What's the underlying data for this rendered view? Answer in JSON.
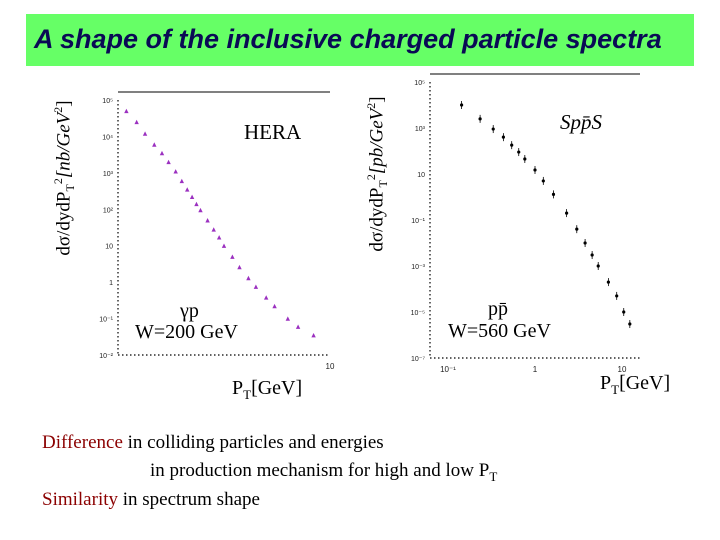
{
  "title": "A shape of the inclusive charged particle spectra",
  "colors": {
    "title_bg": "#66ff66",
    "title_fg": "#0a0a55",
    "accent": "#8b0000",
    "hera_points": "#9b30c0"
  },
  "chart_data": [
    {
      "type": "scatter",
      "name": "HERA",
      "label": "HERA",
      "xscale": "log",
      "yscale": "log",
      "xlim": [
        0.1,
        10
      ],
      "ylim": [
        0.01,
        100000
      ],
      "ylabel": {
        "pre": "dσ/dydP",
        "sub": "T",
        "sup": "2",
        "unit": "[nb/GeV",
        "unit_sup": "2",
        "close": "]"
      },
      "xlabel": {
        "pre": "P",
        "sub": "T",
        "unit": "[GeV]"
      },
      "reaction": "γp",
      "energy": "W=200 GeV",
      "x_ticks": [
        "10"
      ],
      "y_ticks": [
        "10⁻²",
        "10⁻¹",
        "1",
        "10",
        "10²",
        "10³",
        "10⁴",
        "10⁵"
      ],
      "points": [
        {
          "x": 0.12,
          "y": 50000
        },
        {
          "x": 0.15,
          "y": 25000
        },
        {
          "x": 0.18,
          "y": 12000
        },
        {
          "x": 0.22,
          "y": 6000
        },
        {
          "x": 0.26,
          "y": 3500
        },
        {
          "x": 0.3,
          "y": 2000
        },
        {
          "x": 0.35,
          "y": 1100
        },
        {
          "x": 0.4,
          "y": 600
        },
        {
          "x": 0.45,
          "y": 350
        },
        {
          "x": 0.5,
          "y": 220
        },
        {
          "x": 0.55,
          "y": 140
        },
        {
          "x": 0.6,
          "y": 95
        },
        {
          "x": 0.7,
          "y": 50
        },
        {
          "x": 0.8,
          "y": 28
        },
        {
          "x": 0.9,
          "y": 17
        },
        {
          "x": 1.0,
          "y": 10
        },
        {
          "x": 1.2,
          "y": 5
        },
        {
          "x": 1.4,
          "y": 2.6
        },
        {
          "x": 1.7,
          "y": 1.3
        },
        {
          "x": 2.0,
          "y": 0.75
        },
        {
          "x": 2.5,
          "y": 0.38
        },
        {
          "x": 3.0,
          "y": 0.22
        },
        {
          "x": 4.0,
          "y": 0.1
        },
        {
          "x": 5.0,
          "y": 0.06
        },
        {
          "x": 7.0,
          "y": 0.035
        }
      ]
    },
    {
      "type": "scatter",
      "name": "SppS",
      "label": "Spp̄S",
      "xscale": "log",
      "yscale": "log",
      "xlim": [
        0.1,
        10
      ],
      "ylim": [
        1e-07,
        100000
      ],
      "ylabel": {
        "pre": "dσ/dydP",
        "sub": "T",
        "sup": "2",
        "unit": "[pb/GeV",
        "unit_sup": "2",
        "close": "]"
      },
      "xlabel": {
        "pre": "P",
        "sub": "T",
        "unit": "[GeV]"
      },
      "reaction": "pp̄",
      "energy": "W=560 GeV",
      "x_ticks": [
        "10⁻¹",
        "1",
        "10"
      ],
      "y_ticks": [
        "10⁻⁷",
        "10⁻⁵",
        "10⁻³",
        "10⁻¹",
        "10",
        "10³",
        "10⁵"
      ],
      "points": [
        {
          "x": 0.2,
          "y": 10000
        },
        {
          "x": 0.3,
          "y": 2500
        },
        {
          "x": 0.4,
          "y": 900
        },
        {
          "x": 0.5,
          "y": 400
        },
        {
          "x": 0.6,
          "y": 180
        },
        {
          "x": 0.7,
          "y": 90
        },
        {
          "x": 0.8,
          "y": 45
        },
        {
          "x": 1.0,
          "y": 15
        },
        {
          "x": 1.2,
          "y": 5
        },
        {
          "x": 1.5,
          "y": 1.3
        },
        {
          "x": 2.0,
          "y": 0.2
        },
        {
          "x": 2.5,
          "y": 0.04
        },
        {
          "x": 3.0,
          "y": 0.01
        },
        {
          "x": 3.5,
          "y": 0.003
        },
        {
          "x": 4.0,
          "y": 0.001
        },
        {
          "x": 5.0,
          "y": 0.0002
        },
        {
          "x": 6.0,
          "y": 5e-05
        },
        {
          "x": 7.0,
          "y": 1e-05
        },
        {
          "x": 8.0,
          "y": 3e-06
        }
      ]
    }
  ],
  "notes": {
    "line1_highlight": "Difference",
    "line1_rest": " in colliding particles and energies",
    "line2_pre": "in production mechanism for high and low P",
    "line2_sub": "T",
    "line3_highlight": "Similarity",
    "line3_rest": " in spectrum shape"
  }
}
